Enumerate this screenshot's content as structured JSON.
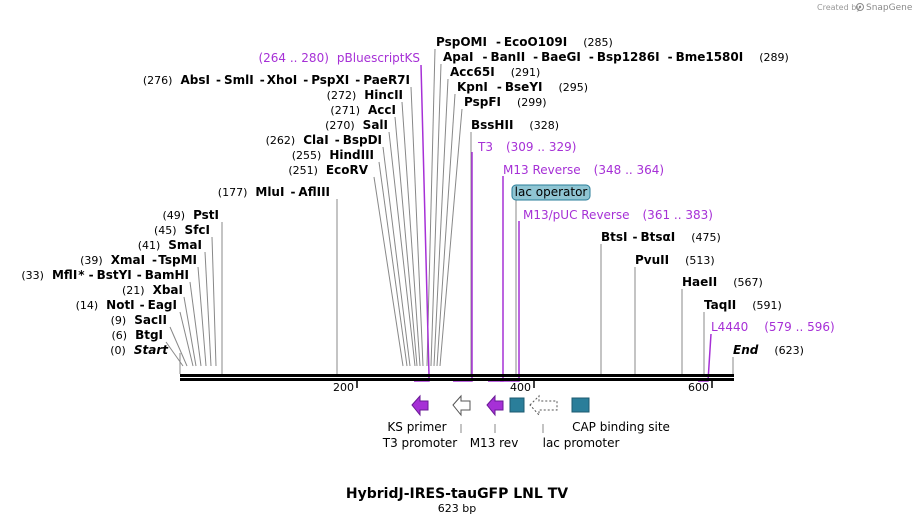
{
  "header": {
    "created_by": "Created by",
    "brand": "SnapGene"
  },
  "map": {
    "title": "HybridJ-IRES-tauGFP LNL TV",
    "length_label": "623 bp",
    "length_bp": 623,
    "ticks": [
      "200",
      "400",
      "600"
    ],
    "colors": {
      "primer": "#a630d6",
      "feature_teal": "#2a7e9a",
      "operator": "#8fc5d3",
      "backbone": "#000000"
    }
  },
  "sites": [
    {
      "id": "start",
      "pos": "(0)",
      "name": "Start",
      "bp": 0
    },
    {
      "id": "btgi",
      "pos": "(6)",
      "name": "BtgI",
      "bp": 6
    },
    {
      "id": "sacii",
      "pos": "(9)",
      "name": "SacII",
      "bp": 9
    },
    {
      "id": "noti",
      "pos": "(14)",
      "name": "NotI",
      "sep": "-",
      "name2": "EagI",
      "bp": 14
    },
    {
      "id": "xbai",
      "pos": "(21)",
      "name": "XbaI",
      "bp": 21
    },
    {
      "id": "mfli",
      "pos": "(33)",
      "name": "MflI",
      "star": "*",
      "sep": "-",
      "name2": "BstYI",
      "sep2": "-",
      "name3": "BamHI",
      "bp": 33
    },
    {
      "id": "xmai",
      "pos": "(39)",
      "name": "XmaI",
      "sep": "-",
      "name2": "TspMI",
      "bp": 39
    },
    {
      "id": "smai",
      "pos": "(41)",
      "name": "SmaI",
      "bp": 41
    },
    {
      "id": "sfci",
      "pos": "(45)",
      "name": "SfcI",
      "bp": 45
    },
    {
      "id": "psti",
      "pos": "(49)",
      "name": "PstI",
      "bp": 49
    },
    {
      "id": "mlui",
      "pos": "(177)",
      "name": "MluI",
      "sep": "-",
      "name2": "AflIII",
      "bp": 177
    },
    {
      "id": "ecorv",
      "pos": "(251)",
      "name": "EcoRV",
      "bp": 251
    },
    {
      "id": "hindiii",
      "pos": "(255)",
      "name": "HindIII",
      "bp": 255
    },
    {
      "id": "clai",
      "pos": "(262)",
      "name": "ClaI",
      "sep": "-",
      "name2": "BspDI",
      "bp": 262
    },
    {
      "id": "sali",
      "pos": "(270)",
      "name": "SalI",
      "bp": 270
    },
    {
      "id": "acci",
      "pos": "(271)",
      "name": "AccI",
      "bp": 271
    },
    {
      "id": "hincii",
      "pos": "(272)",
      "name": "HincII",
      "bp": 272
    },
    {
      "id": "absi",
      "pos": "(276)",
      "name": "AbsI",
      "sep": "-",
      "name2": "SmlI",
      "sep2": "-",
      "name3": "XhoI",
      "sep3": "-",
      "name4": "PspXI",
      "sep4": "-",
      "name5": "PaeR7I",
      "bp": 276
    },
    {
      "id": "pspomi",
      "name": "PspOMI",
      "sep": "-",
      "name2": "EcoO109I",
      "pos": "(285)",
      "bp": 285
    },
    {
      "id": "apai",
      "name": "ApaI",
      "sep": "-",
      "name2": "BanII",
      "sep2": "-",
      "name3": "BaeGI",
      "sep3": "-",
      "name4": "Bsp1286I",
      "sep4": "-",
      "name5": "Bme1580I",
      "pos": "(289)",
      "bp": 289
    },
    {
      "id": "acc65i",
      "name": "Acc65I",
      "pos": "(291)",
      "bp": 291
    },
    {
      "id": "kpni",
      "name": "KpnI",
      "sep": "-",
      "name2": "BseYI",
      "pos": "(295)",
      "bp": 295
    },
    {
      "id": "pspfi",
      "name": "PspFI",
      "pos": "(299)",
      "bp": 299
    },
    {
      "id": "bsshii",
      "name": "BssHII",
      "pos": "(328)",
      "bp": 328
    },
    {
      "id": "btsi",
      "name": "BtsI",
      "sep": "-",
      "name2": "BtsαI",
      "pos": "(475)",
      "bp": 475
    },
    {
      "id": "pvuii",
      "name": "PvuII",
      "pos": "(513)",
      "bp": 513
    },
    {
      "id": "haeii",
      "name": "HaeII",
      "pos": "(567)",
      "bp": 567
    },
    {
      "id": "taqii",
      "name": "TaqII",
      "pos": "(591)",
      "bp": 591
    },
    {
      "id": "end",
      "name": "End",
      "pos": "(623)",
      "bp": 623
    }
  ],
  "primers": [
    {
      "id": "pbluescriptks",
      "range": "(264 .. 280)",
      "name": "pBluescriptKS",
      "start": 264,
      "end": 280
    },
    {
      "id": "t3",
      "name": "T3",
      "range": "(309 .. 329)",
      "start": 309,
      "end": 329
    },
    {
      "id": "m13rev",
      "name": "M13 Reverse",
      "range": "(348 .. 364)",
      "start": 348,
      "end": 364
    },
    {
      "id": "m13puc",
      "name": "M13/pUC Reverse",
      "range": "(361 .. 383)",
      "start": 361,
      "end": 383
    },
    {
      "id": "l4440",
      "name": "L4440",
      "range": "(579 .. 596)",
      "start": 579,
      "end": 596
    }
  ],
  "features": [
    {
      "id": "lac-operator",
      "label": "lac operator"
    },
    {
      "id": "ks-primer",
      "label": "KS primer"
    },
    {
      "id": "t3-promoter",
      "label": "T3 promoter"
    },
    {
      "id": "m13-rev",
      "label": "M13 rev"
    },
    {
      "id": "lac-promoter",
      "label": "lac promoter"
    },
    {
      "id": "cap-site",
      "label": "CAP binding site"
    }
  ]
}
